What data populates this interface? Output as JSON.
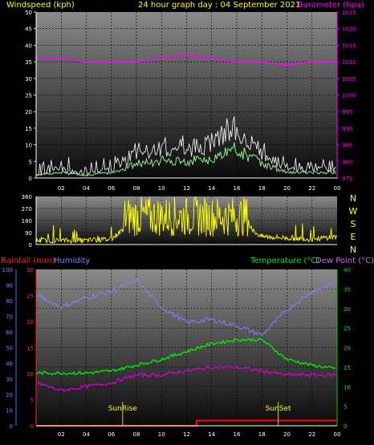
{
  "header": {
    "wind_label": "Windspeed (kph)",
    "title": "24 hour graph day : 04 September 2021",
    "baro_label": "Barometer (hpa)"
  },
  "wind_chart": {
    "y_ticks": [
      "0",
      "5",
      "10",
      "15",
      "20",
      "25",
      "30",
      "35",
      "40",
      "45",
      "50"
    ],
    "x_ticks": [
      "02",
      "04",
      "06",
      "08",
      "10",
      "12",
      "14",
      "16",
      "18",
      "20",
      "22",
      "00"
    ],
    "baro_ticks": [
      "975",
      "980",
      "985",
      "990",
      "995",
      "1000",
      "1005",
      "1010",
      "1015",
      "1020",
      "1025"
    ]
  },
  "dir_chart": {
    "y_ticks": [
      "0",
      "90",
      "180",
      "270",
      "360"
    ],
    "compass": [
      "N",
      "W",
      "S",
      "E",
      "N"
    ]
  },
  "temp_chart": {
    "left_label_rain": "Rainfall (mm)",
    "left_label_hum": "Humidity",
    "right_label_temp": "Temperature (°C)",
    "right_label_dew": "Dew Point (°C)",
    "hum_ticks": [
      "0",
      "10",
      "20",
      "30",
      "40",
      "50",
      "60",
      "70",
      "80",
      "90",
      "100"
    ],
    "rain_ticks": [
      "0",
      "5",
      "10",
      "15",
      "20",
      "25",
      "30"
    ],
    "temp_ticks": [
      "0",
      "5",
      "10",
      "15",
      "20",
      "25",
      "30",
      "35",
      "40"
    ],
    "x_ticks": [
      "02",
      "04",
      "06",
      "08",
      "10",
      "12",
      "14",
      "16",
      "18",
      "20",
      "22",
      "00"
    ],
    "sunrise_label": "SunRise",
    "sunset_label": "SunSet"
  },
  "colors": {
    "wind": "#ffffff",
    "gust": "#90ee90",
    "baro": "#ff00ff",
    "direction": "#ffff00",
    "humidity": "#8080ff",
    "temperature": "#00ee00",
    "dewpoint": "#cc00cc",
    "rain": "#ff0000"
  },
  "chart_data": [
    {
      "type": "line",
      "title": "24 hour graph day : 04 September 2021",
      "xlabel": "",
      "ylabel": "Windspeed (kph)",
      "y2label": "Barometer (hpa)",
      "ylim": [
        0,
        50
      ],
      "y2lim": [
        975,
        1025
      ],
      "x": [
        0,
        2,
        4,
        6,
        8,
        10,
        12,
        14,
        16,
        18,
        20,
        22,
        24
      ],
      "series": [
        {
          "name": "Windspeed (kph)",
          "values": [
            1,
            2,
            1,
            2,
            5,
            6,
            6,
            7,
            10,
            5,
            2,
            2,
            2
          ]
        },
        {
          "name": "Barometer (hpa)",
          "values": [
            1011,
            1011,
            1010,
            1010,
            1010,
            1011,
            1012,
            1011,
            1010,
            1010,
            1009,
            1010,
            1010
          ]
        }
      ]
    },
    {
      "type": "line",
      "title": "",
      "ylabel": "",
      "ylim": [
        0,
        360
      ],
      "x": [
        0,
        2,
        4,
        6,
        8,
        10,
        12,
        14,
        16,
        18,
        20,
        22,
        24
      ],
      "series": [
        {
          "name": "",
          "values": [
            30,
            30,
            30,
            40,
            200,
            190,
            200,
            170,
            180,
            60,
            50,
            40,
            60
          ]
        }
      ]
    },
    {
      "type": "line",
      "title": "",
      "x": [
        0,
        2,
        4,
        6,
        8,
        10,
        12,
        14,
        16,
        18,
        20,
        22,
        24
      ],
      "series": [
        {
          "name": "Humidity",
          "values": [
            84,
            76,
            82,
            86,
            93,
            76,
            66,
            68,
            64,
            58,
            74,
            86,
            92
          ]
        },
        {
          "name": "Temperature (°C)",
          "values": [
            13.5,
            13.5,
            13.5,
            14,
            15.5,
            17,
            19,
            21,
            22,
            22,
            17,
            15.5,
            14.5
          ]
        },
        {
          "name": "Dew Point (°C)",
          "values": [
            11,
            9,
            10,
            11,
            13,
            13,
            14,
            15,
            15,
            14,
            13,
            13,
            13
          ]
        },
        {
          "name": "Rainfall (mm)",
          "values": [
            0,
            0,
            0,
            0,
            0,
            0,
            1,
            1,
            1,
            1,
            1,
            1,
            1
          ]
        }
      ],
      "hum_lim": [
        0,
        100
      ],
      "temp_lim": [
        0,
        40
      ],
      "rain_lim": [
        0,
        30
      ]
    }
  ]
}
